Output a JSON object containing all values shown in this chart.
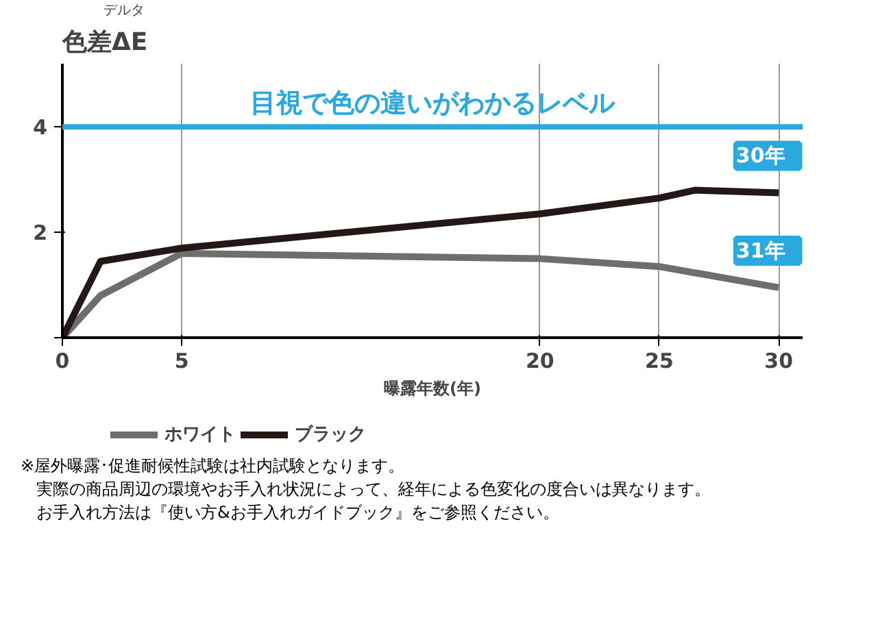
{
  "chart_data": {
    "type": "line",
    "ylabel": "色差ΔE",
    "xlabel": "曝露年数(年)",
    "xlim": [
      0,
      31
    ],
    "xticks": [
      0,
      5,
      20,
      25,
      30
    ],
    "ylim": [
      0,
      5.2
    ],
    "yticks": [
      2,
      4,
      {
        "value": 0,
        "label": null
      }
    ],
    "grid": "x",
    "legend": "bottom",
    "line_style": "solid",
    "series": [
      {
        "name": "ホワイト",
        "color": "#6e6e6e",
        "x": [
          0,
          1.6,
          5,
          20,
          25,
          30
        ],
        "values": [
          0,
          0.8,
          1.6,
          1.5,
          1.35,
          0.95
        ]
      },
      {
        "name": "ブラック",
        "color": "#231815",
        "x": [
          0,
          1.6,
          5,
          20,
          25,
          26.5,
          30
        ],
        "values": [
          0,
          1.45,
          1.7,
          2.35,
          2.65,
          2.8,
          2.75
        ]
      }
    ],
    "ref_lines": [
      {
        "axis": "y",
        "value": 4,
        "label": "目視で色の違いがわかるレベル",
        "color": "#29a9e0"
      }
    ],
    "annotations": [
      "デルタ",
      {
        "text": "30年",
        "x": 30,
        "y": 2.75
      },
      {
        "text": "31年",
        "x": 30,
        "y": 0.95
      },
      "※屋外曝露･促進耐候性試験は社内試験となります。",
      "実際の商品周辺の環境やお手入れ状況によって、経年による色変化の度合いは異なります。",
      "お手入れ方法は『使い方&お手入れガイドブック』をご参照ください。"
    ]
  }
}
